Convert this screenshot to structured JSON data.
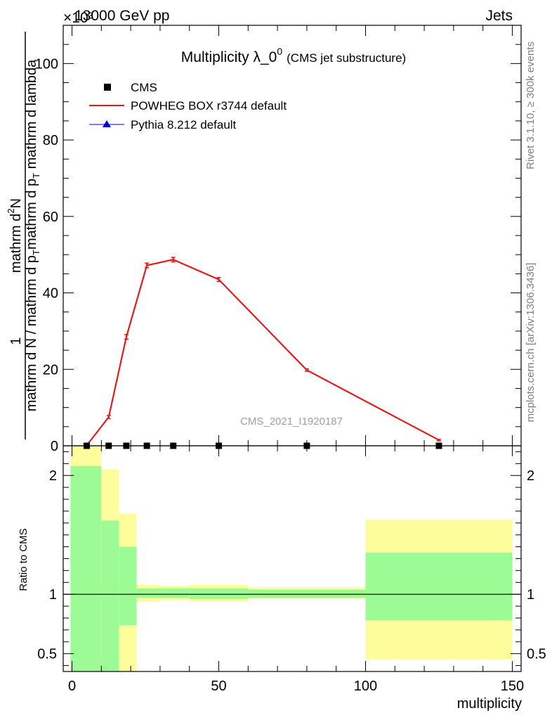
{
  "header": {
    "left": "13000 GeV pp",
    "right": "Jets",
    "exponent": "×10³",
    "watermark": "CMS_2021_I1920187",
    "side_top": "Rivet 3.1.10, ≥ 300k events",
    "side_bottom": "mcplots.cern.ch [arXiv:1306.3436]"
  },
  "chart_data": [
    {
      "type": "line",
      "title": "Multiplicity λ_0",
      "title_sup": "0",
      "subtitle": "(CMS jet substructure)",
      "ylabel_num": "mathrm d",
      "ylabel_num_sup": "2",
      "ylabel_num_tail": "N",
      "ylabel_den": "mathrm d p",
      "ylabel_den_sub": "T",
      "ylabel_den_tail": " mathrm d lambda",
      "ylabel_pre": "1",
      "ylabel_pre_den": "mathrm d N / mathrm d p",
      "ylabel_pre_den_sub": "T",
      "yscale_factor": 1000,
      "xlim": [
        -3,
        153
      ],
      "ylim": [
        0,
        110
      ],
      "yticks": [
        0,
        20,
        40,
        60,
        80,
        100
      ],
      "yticklabels": [
        "0",
        "20",
        "40",
        "60",
        "80",
        "100"
      ],
      "legend_position": "top-left",
      "legend": {
        "cms": "CMS",
        "powheg": "POWHEG BOX r3744 default",
        "pythia": "Pythia 8.212 default"
      },
      "series": [
        {
          "name": "CMS",
          "color": "#000000",
          "marker": "square",
          "x": [
            5,
            12.5,
            18.5,
            25.5,
            34.5,
            50,
            80,
            125
          ],
          "values": [
            0,
            0,
            0,
            0,
            0,
            0,
            0,
            0
          ]
        },
        {
          "name": "POWHEG BOX r3744 default",
          "color": "#e41a1c",
          "marker": "none",
          "x": [
            5,
            12.5,
            18.5,
            25.5,
            34.5,
            50,
            80,
            125
          ],
          "values": [
            0.1,
            7.5,
            28.5,
            47.2,
            48.7,
            43.5,
            19.8,
            1.5
          ],
          "errors": [
            0.2,
            0.4,
            0.6,
            0.6,
            0.6,
            0.5,
            0.3,
            0.2
          ]
        },
        {
          "name": "Pythia 8.212 default",
          "color": "#0000cc",
          "marker": "triangle",
          "x": [],
          "values": []
        }
      ]
    },
    {
      "type": "area",
      "ylabel": "Ratio to CMS",
      "xlabel": "multiplicity",
      "xlim": [
        -3,
        153
      ],
      "ylim": [
        0.35,
        2.25
      ],
      "xticks": [
        0,
        50,
        100,
        150
      ],
      "xticklabels": [
        "0",
        "50",
        "100",
        "150"
      ],
      "yticks": [
        0.5,
        1,
        2
      ],
      "yticklabels": [
        "0.5",
        "1",
        "2"
      ],
      "reference_line": 1,
      "bands": [
        {
          "x0": -0.5,
          "x1": 10,
          "green": [
            0.35,
            2.08
          ],
          "yellow": [
            0.35,
            2.25
          ]
        },
        {
          "x0": 10,
          "x1": 16,
          "green": [
            0.35,
            1.62
          ],
          "yellow": [
            0.45,
            2.05
          ]
        },
        {
          "x0": 16,
          "x1": 22,
          "green": [
            0.74,
            1.4
          ],
          "yellow": [
            0.35,
            1.68
          ]
        },
        {
          "x0": 22,
          "x1": 30,
          "green": [
            0.97,
            1.05
          ],
          "yellow": [
            0.94,
            1.08
          ]
        },
        {
          "x0": 30,
          "x1": 40,
          "green": [
            0.97,
            1.05
          ],
          "yellow": [
            0.95,
            1.07
          ]
        },
        {
          "x0": 40,
          "x1": 60,
          "green": [
            0.96,
            1.05
          ],
          "yellow": [
            0.94,
            1.08
          ]
        },
        {
          "x0": 60,
          "x1": 100,
          "green": [
            0.97,
            1.04
          ],
          "yellow": [
            0.96,
            1.06
          ]
        },
        {
          "x0": 100,
          "x1": 150,
          "green": [
            0.78,
            1.35
          ],
          "yellow": [
            0.45,
            1.63
          ]
        }
      ],
      "colors": {
        "green": "#9cfb94",
        "yellow": "#fdfd9c"
      }
    }
  ]
}
